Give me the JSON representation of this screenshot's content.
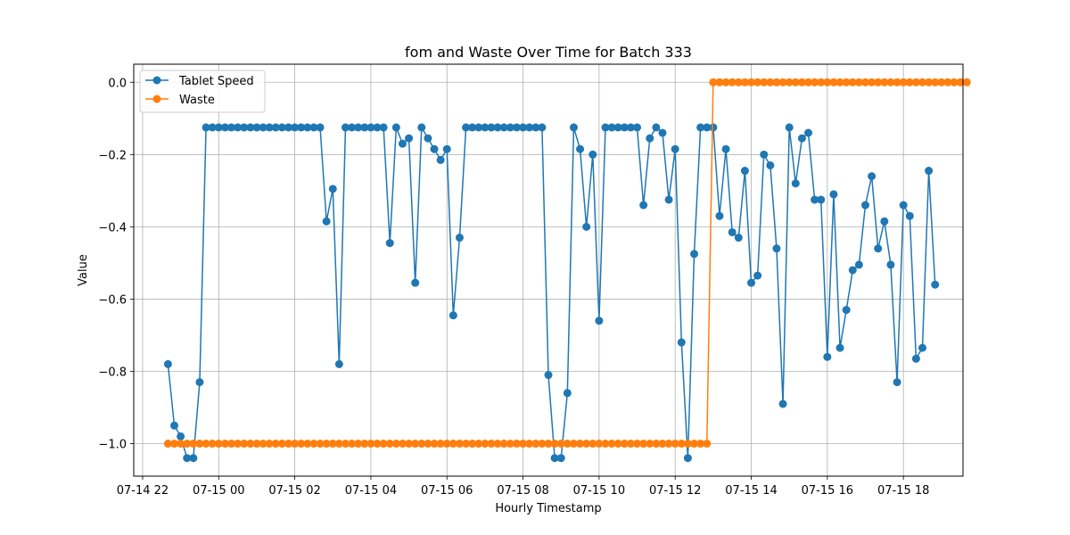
{
  "chart_data": {
    "type": "line",
    "title": "fom and Waste Over Time for Batch 333",
    "xlabel": "Hourly Timestamp",
    "ylabel": "Value",
    "x_axis_kind": "datetime",
    "x_start": "2024-07-14T22:40:00",
    "x_step_minutes": 10,
    "xlim": [
      "2024-07-14T21:46:00",
      "2024-07-15T19:34:00"
    ],
    "ylim": [
      -1.09,
      0.05
    ],
    "xticks": [
      {
        "t": "2024-07-14T22:00:00",
        "label": "07-14 22"
      },
      {
        "t": "2024-07-15T00:00:00",
        "label": "07-15 00"
      },
      {
        "t": "2024-07-15T02:00:00",
        "label": "07-15 02"
      },
      {
        "t": "2024-07-15T04:00:00",
        "label": "07-15 04"
      },
      {
        "t": "2024-07-15T06:00:00",
        "label": "07-15 06"
      },
      {
        "t": "2024-07-15T08:00:00",
        "label": "07-15 08"
      },
      {
        "t": "2024-07-15T10:00:00",
        "label": "07-15 10"
      },
      {
        "t": "2024-07-15T12:00:00",
        "label": "07-15 12"
      },
      {
        "t": "2024-07-15T14:00:00",
        "label": "07-15 14"
      },
      {
        "t": "2024-07-15T16:00:00",
        "label": "07-15 16"
      },
      {
        "t": "2024-07-15T18:00:00",
        "label": "07-15 18"
      }
    ],
    "yticks": [
      {
        "v": -1.0,
        "label": "−1.0"
      },
      {
        "v": -0.8,
        "label": "−0.8"
      },
      {
        "v": -0.6,
        "label": "−0.6"
      },
      {
        "v": -0.4,
        "label": "−0.4"
      },
      {
        "v": -0.2,
        "label": "−0.2"
      },
      {
        "v": 0.0,
        "label": "0.0"
      }
    ],
    "grid": true,
    "legend_position": "top-left",
    "series": [
      {
        "name": "Tablet Speed",
        "color": "#1f77b4",
        "values": [
          -0.78,
          -0.95,
          -0.98,
          -1.04,
          -1.04,
          -0.83,
          -0.125,
          -0.125,
          -0.125,
          -0.125,
          -0.125,
          -0.125,
          -0.125,
          -0.125,
          -0.125,
          -0.125,
          -0.125,
          -0.125,
          -0.125,
          -0.125,
          -0.125,
          -0.125,
          -0.125,
          -0.125,
          -0.125,
          -0.385,
          -0.295,
          -0.78,
          -0.125,
          -0.125,
          -0.125,
          -0.125,
          -0.125,
          -0.125,
          -0.125,
          -0.445,
          -0.125,
          -0.17,
          -0.155,
          -0.555,
          -0.125,
          -0.155,
          -0.185,
          -0.215,
          -0.185,
          -0.645,
          -0.43,
          -0.125,
          -0.125,
          -0.125,
          -0.125,
          -0.125,
          -0.125,
          -0.125,
          -0.125,
          -0.125,
          -0.125,
          -0.125,
          -0.125,
          -0.125,
          -0.81,
          -1.04,
          -1.04,
          -0.86,
          -0.125,
          -0.185,
          -0.4,
          -0.2,
          -0.66,
          -0.125,
          -0.125,
          -0.125,
          -0.125,
          -0.125,
          -0.125,
          -0.34,
          -0.155,
          -0.125,
          -0.14,
          -0.325,
          -0.185,
          -0.72,
          -1.04,
          -0.475,
          -0.125,
          -0.125,
          -0.125,
          -0.37,
          -0.185,
          -0.415,
          -0.43,
          -0.245,
          -0.555,
          -0.535,
          -0.2,
          -0.23,
          -0.46,
          -0.89,
          -0.125,
          -0.28,
          -0.155,
          -0.14,
          -0.325,
          -0.325,
          -0.76,
          -0.31,
          -0.735,
          -0.63,
          -0.52,
          -0.505,
          -0.34,
          -0.26,
          -0.46,
          -0.385,
          -0.505,
          -0.83,
          -0.34,
          -0.37,
          -0.765,
          -0.735,
          -0.245,
          -0.56
        ]
      },
      {
        "name": "Waste",
        "color": "#ff7f0e",
        "values": [
          -1,
          -1,
          -1,
          -1,
          -1,
          -1,
          -1,
          -1,
          -1,
          -1,
          -1,
          -1,
          -1,
          -1,
          -1,
          -1,
          -1,
          -1,
          -1,
          -1,
          -1,
          -1,
          -1,
          -1,
          -1,
          -1,
          -1,
          -1,
          -1,
          -1,
          -1,
          -1,
          -1,
          -1,
          -1,
          -1,
          -1,
          -1,
          -1,
          -1,
          -1,
          -1,
          -1,
          -1,
          -1,
          -1,
          -1,
          -1,
          -1,
          -1,
          -1,
          -1,
          -1,
          -1,
          -1,
          -1,
          -1,
          -1,
          -1,
          -1,
          -1,
          -1,
          -1,
          -1,
          -1,
          -1,
          -1,
          -1,
          -1,
          -1,
          -1,
          -1,
          -1,
          -1,
          -1,
          -1,
          -1,
          -1,
          -1,
          -1,
          -1,
          -1,
          -1,
          -1,
          -1,
          -1,
          0,
          0,
          0,
          0,
          0,
          0,
          0,
          0,
          0,
          0,
          0,
          0,
          0,
          0,
          0,
          0,
          0,
          0,
          0,
          0,
          0,
          0,
          0,
          0,
          0,
          0,
          0,
          0,
          0,
          0,
          0,
          0,
          0,
          0,
          0,
          0,
          0,
          0,
          0,
          0,
          0
        ]
      }
    ]
  }
}
